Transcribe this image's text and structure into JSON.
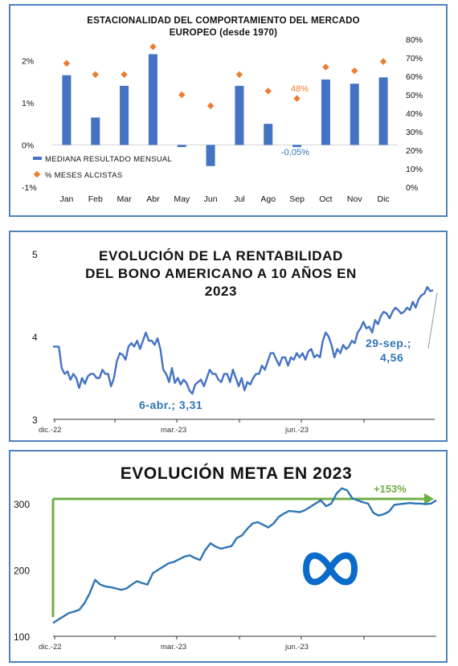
{
  "chart_data": [
    {
      "type": "bar",
      "title": "ESTACIONALIDAD DEL COMPORTAMIENTO DEL MERCADO",
      "subtitle": "EUROPEO (desde 1970)",
      "categories": [
        "Jan",
        "Feb",
        "Mar",
        "Abr",
        "May",
        "Jun",
        "Jul",
        "Ago",
        "Sep",
        "Oct",
        "Nov",
        "Dic"
      ],
      "y_ticks": [
        "2%",
        "1%",
        "0%",
        "-1%"
      ],
      "y2_ticks": [
        "80%",
        "70%",
        "60%",
        "50%",
        "40%",
        "30%",
        "20%",
        "10%",
        "0%"
      ],
      "ylim": [
        -1,
        2.5
      ],
      "y2lim": [
        0,
        80
      ],
      "series": [
        {
          "name": "MEDIANA RESULTADO MENSUAL",
          "axis": "left",
          "color": "#4472c4",
          "values": [
            1.65,
            0.65,
            1.4,
            2.15,
            -0.05,
            -0.5,
            1.4,
            0.5,
            -0.05,
            1.55,
            1.45,
            1.6
          ]
        },
        {
          "name": "% MESES ALCISTAS",
          "axis": "right",
          "color": "#ed7d31",
          "values": [
            67,
            61,
            61,
            76,
            50,
            44,
            61,
            52,
            48,
            65,
            63,
            68
          ]
        }
      ],
      "annotations": [
        {
          "text": "48%",
          "category": "Sep"
        },
        {
          "text": "-0,05%",
          "category": "Sep"
        }
      ],
      "legend": "bottom-left",
      "grid": false
    },
    {
      "type": "line",
      "title": "EVOLUCIÓN DE LA RENTABILIDAD",
      "subtitle_lines": [
        "DEL BONO AMERICANO A 10 AÑOS EN",
        "2023"
      ],
      "y_ticks": [
        "5",
        "4",
        "3"
      ],
      "ylim": [
        3,
        5
      ],
      "x_ticks": [
        "dic.-22",
        "mar.-23",
        "jun.-23"
      ],
      "color": "#4472c4",
      "series": [
        {
          "values": [
            3.88,
            3.88,
            3.88,
            3.62,
            3.55,
            3.58,
            3.48,
            3.55,
            3.5,
            3.38,
            3.5,
            3.43,
            3.52,
            3.55,
            3.55,
            3.5,
            3.5,
            3.6,
            3.55,
            3.55,
            3.4,
            3.5,
            3.7,
            3.8,
            3.78,
            3.72,
            3.88,
            3.92,
            3.88,
            3.95,
            3.85,
            3.95,
            4.05,
            3.95,
            3.95,
            3.9,
            3.98,
            3.85,
            3.6,
            3.55,
            3.45,
            3.62,
            3.44,
            3.5,
            3.42,
            3.48,
            3.44,
            3.35,
            3.31,
            3.42,
            3.45,
            3.48,
            3.4,
            3.5,
            3.6,
            3.55,
            3.55,
            3.48,
            3.45,
            3.55,
            3.55,
            3.45,
            3.6,
            3.5,
            3.4,
            3.5,
            3.35,
            3.45,
            3.42,
            3.5,
            3.55,
            3.55,
            3.65,
            3.6,
            3.7,
            3.8,
            3.8,
            3.72,
            3.65,
            3.75,
            3.75,
            3.65,
            3.75,
            3.72,
            3.8,
            3.75,
            3.8,
            3.72,
            3.82,
            3.85,
            3.75,
            3.78,
            3.75,
            3.95,
            4.05,
            4.0,
            3.9,
            3.75,
            3.85,
            3.8,
            3.9,
            3.85,
            3.88,
            3.95,
            3.92,
            4.05,
            4.1,
            4.18,
            4.1,
            4.12,
            4.05,
            4.2,
            4.15,
            4.25,
            4.3,
            4.28,
            4.22,
            4.3,
            4.35,
            4.32,
            4.28,
            4.3,
            4.35,
            4.32,
            4.42,
            4.35,
            4.45,
            4.5,
            4.52,
            4.6,
            4.55,
            4.56
          ]
        }
      ],
      "annotations": [
        {
          "text": "6-abr.; 3,31"
        },
        {
          "text": "29-sep.;"
        },
        {
          "text": "4,56"
        }
      ]
    },
    {
      "type": "line",
      "title": "EVOLUCIÓN META EN 2023",
      "y_ticks": [
        "300",
        "200",
        "100"
      ],
      "ylim": [
        100,
        330
      ],
      "x_ticks": [
        "dic.-22",
        "mar.-23",
        "jun.-23"
      ],
      "color": "#2e75b6",
      "series": [
        {
          "values": [
            120,
            125,
            130,
            135,
            137,
            140,
            150,
            165,
            185,
            178,
            175,
            174,
            172,
            170,
            172,
            178,
            183,
            180,
            178,
            195,
            200,
            205,
            210,
            212,
            216,
            220,
            222,
            218,
            215,
            230,
            240,
            235,
            232,
            234,
            236,
            248,
            252,
            262,
            270,
            272,
            268,
            264,
            270,
            280,
            285,
            289,
            288,
            287,
            290,
            295,
            300,
            305,
            296,
            300,
            315,
            323,
            320,
            308,
            305,
            302,
            300,
            286,
            282,
            284,
            288,
            298,
            299,
            300,
            301,
            300,
            300,
            299,
            300,
            305
          ]
        }
      ],
      "annotations": [
        {
          "text": "+153%"
        }
      ],
      "logo": "meta-infinity-logo"
    }
  ]
}
